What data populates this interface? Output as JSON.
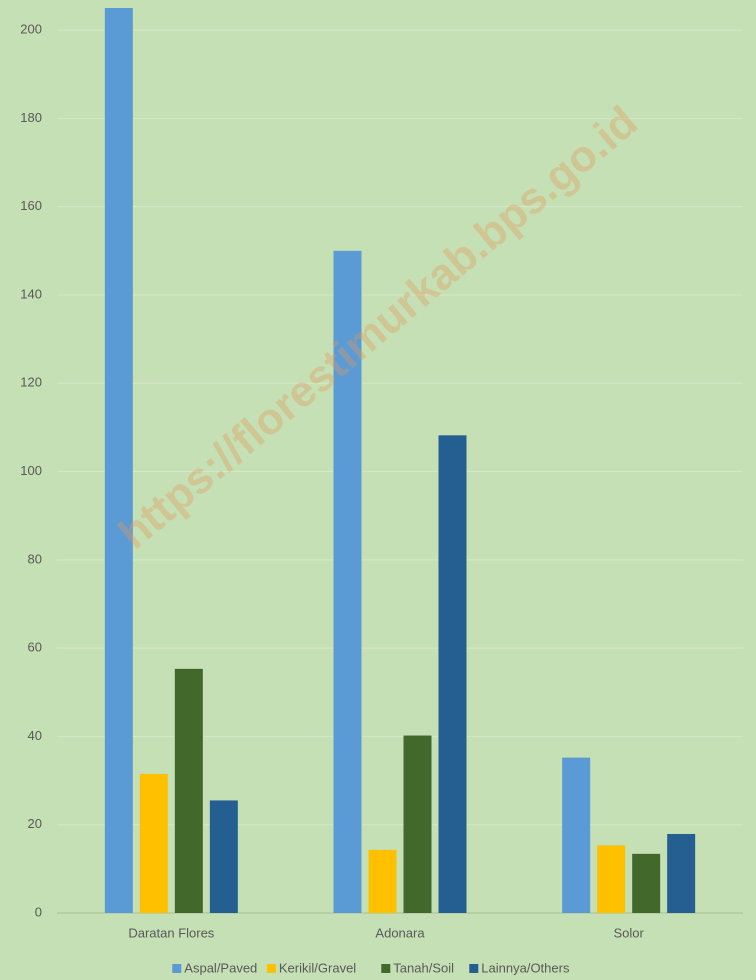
{
  "chart_data": {
    "type": "bar",
    "categories": [
      "Daratan Flores",
      "Adonara",
      "Solor"
    ],
    "series": [
      {
        "name": "Aspal/Paved",
        "color": "#5b9bd5",
        "values": [
          205,
          150,
          35.2
        ]
      },
      {
        "name": "Kerikil/Gravel",
        "color": "#ffc000",
        "values": [
          31.5,
          14.3,
          15.3
        ]
      },
      {
        "name": "Tanah/Soil",
        "color": "#43682b",
        "values": [
          55.3,
          40.2,
          13.4
        ]
      },
      {
        "name": "Lainnya/Others",
        "color": "#255e91",
        "values": [
          25.5,
          108.2,
          17.9
        ]
      }
    ],
    "ylim": [
      0,
      205
    ],
    "yticks": [
      0,
      20,
      40,
      60,
      80,
      100,
      120,
      140,
      160,
      180,
      200
    ],
    "grid": true,
    "legend": "bottom",
    "watermark": "https://florestimurkab.bps.go.id"
  }
}
